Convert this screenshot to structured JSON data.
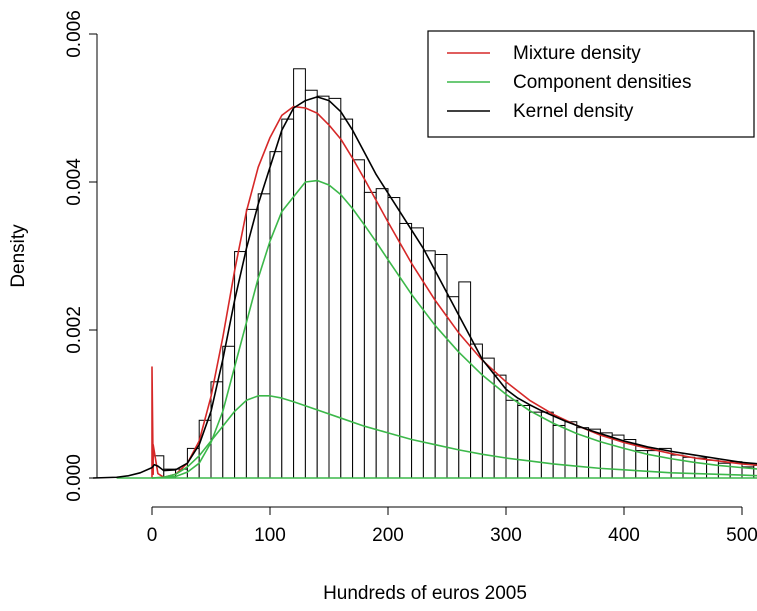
{
  "chart_data": {
    "type": "histogram",
    "title": "",
    "xlabel": "Hundreds of euros 2005",
    "ylabel": "Density",
    "xlim": [
      -30,
      515
    ],
    "ylim": [
      0,
      0.006
    ],
    "x_ticks": [
      0,
      100,
      200,
      300,
      400,
      500
    ],
    "x_tick_labels": [
      "0",
      "100",
      "200",
      "300",
      "400",
      "500"
    ],
    "y_ticks": [
      0,
      0.002,
      0.004,
      0.006
    ],
    "y_tick_labels": [
      "0.000",
      "0.002",
      "0.004",
      "0.006"
    ],
    "grid": false,
    "legend_position": "top-right",
    "histogram": {
      "bin_width": 10,
      "bin_starts": [
        0,
        10,
        20,
        30,
        40,
        50,
        60,
        70,
        80,
        90,
        100,
        110,
        120,
        130,
        140,
        150,
        160,
        170,
        180,
        190,
        200,
        210,
        220,
        230,
        240,
        250,
        260,
        270,
        280,
        290,
        300,
        310,
        320,
        330,
        340,
        350,
        360,
        370,
        380,
        390,
        400,
        410,
        420,
        430,
        440,
        450,
        460,
        470,
        480,
        490,
        500,
        510
      ],
      "densities": [
        0.0003,
        0.00012,
        0.00012,
        0.0004,
        0.00078,
        0.0013,
        0.00178,
        0.00306,
        0.00363,
        0.00384,
        0.00441,
        0.00485,
        0.00553,
        0.00524,
        0.00516,
        0.00513,
        0.00485,
        0.0043,
        0.00386,
        0.00391,
        0.00379,
        0.00344,
        0.00338,
        0.00307,
        0.00302,
        0.00245,
        0.00265,
        0.00181,
        0.00162,
        0.00139,
        0.00105,
        0.00098,
        0.00089,
        0.00089,
        0.00071,
        0.00076,
        0.00068,
        0.00066,
        0.00061,
        0.00058,
        0.00052,
        0.00037,
        0.00037,
        0.0004,
        0.00031,
        0.00028,
        0.00027,
        0.00024,
        0.0002,
        0.00022,
        0.00015,
        0.00017
      ]
    },
    "series": [
      {
        "name": "Mixture density",
        "color": "#d62828",
        "x": [
          0,
          0,
          1,
          1,
          5,
          10,
          20,
          30,
          40,
          50,
          60,
          70,
          80,
          90,
          100,
          110,
          120,
          130,
          140,
          150,
          160,
          170,
          180,
          190,
          200,
          220,
          240,
          260,
          280,
          300,
          320,
          340,
          360,
          380,
          400,
          420,
          440,
          460,
          480,
          500,
          515
        ],
        "y": [
          0,
          0.0015,
          5e-05,
          0.00045,
          6e-05,
          1e-05,
          5e-05,
          0.0002,
          0.0005,
          0.0011,
          0.0019,
          0.0028,
          0.0036,
          0.0042,
          0.0046,
          0.0049,
          0.00502,
          0.005,
          0.00493,
          0.00477,
          0.00458,
          0.00432,
          0.00404,
          0.00375,
          0.00346,
          0.0029,
          0.0024,
          0.00196,
          0.00159,
          0.0013,
          0.00105,
          0.00086,
          0.00071,
          0.00058,
          0.00048,
          0.0004,
          0.00033,
          0.00027,
          0.00023,
          0.00019,
          0.00017
        ]
      },
      {
        "name": "Component densities",
        "color": "#3cb84a",
        "x": [
          0,
          20,
          30,
          40,
          50,
          60,
          70,
          80,
          90,
          100,
          110,
          120,
          130,
          140,
          150,
          160,
          170,
          180,
          190,
          200,
          220,
          240,
          260,
          280,
          300,
          320,
          340,
          360,
          380,
          400,
          420,
          440,
          460,
          480,
          500,
          515
        ],
        "y": [
          0,
          2e-05,
          8e-05,
          0.0002,
          0.00048,
          0.0009,
          0.0015,
          0.0021,
          0.0027,
          0.0032,
          0.0036,
          0.0038,
          0.004,
          0.00402,
          0.00396,
          0.00383,
          0.00364,
          0.00342,
          0.00319,
          0.00295,
          0.00248,
          0.00206,
          0.0017,
          0.00139,
          0.00113,
          0.00091,
          0.00074,
          0.0006,
          0.00049,
          0.0004,
          0.00032,
          0.00026,
          0.00021,
          0.00017,
          0.00014,
          0.00012
        ]
      },
      {
        "name": "",
        "color": "#3cb84a",
        "x": [
          0,
          10,
          20,
          30,
          40,
          50,
          60,
          70,
          80,
          90,
          100,
          110,
          120,
          140,
          160,
          180,
          200,
          220,
          240,
          260,
          280,
          300,
          320,
          340,
          360,
          380,
          400,
          420,
          440,
          460,
          480,
          500,
          515
        ],
        "y": [
          0,
          1e-05,
          5e-05,
          0.00015,
          0.0003,
          0.0005,
          0.0007,
          0.0009,
          0.00105,
          0.00111,
          0.00111,
          0.00108,
          0.00103,
          0.00092,
          0.00081,
          0.0007,
          0.00061,
          0.00052,
          0.00045,
          0.00038,
          0.00032,
          0.00027,
          0.00023,
          0.00019,
          0.00016,
          0.00013,
          0.00011,
          9e-05,
          7e-05,
          6e-05,
          5e-05,
          4e-05,
          3e-05
        ]
      },
      {
        "name": "",
        "color": "#3cb84a",
        "x": [
          -30,
          515
        ],
        "y": [
          0,
          0
        ]
      },
      {
        "name": "Kernel density",
        "color": "#000000",
        "x": [
          -50,
          -30,
          -20,
          -10,
          0,
          2,
          5,
          10,
          20,
          30,
          40,
          50,
          60,
          70,
          80,
          90,
          100,
          110,
          120,
          130,
          140,
          150,
          160,
          170,
          180,
          190,
          200,
          210,
          220,
          230,
          240,
          250,
          260,
          270,
          280,
          290,
          300,
          310,
          320,
          330,
          340,
          350,
          360,
          370,
          380,
          390,
          400,
          420,
          440,
          460,
          480,
          500,
          515
        ],
        "y": [
          0,
          1e-05,
          3e-05,
          7e-05,
          0.00014,
          0.00018,
          0.00016,
          0.0001,
          0.00011,
          0.0002,
          0.00045,
          0.0009,
          0.0016,
          0.0024,
          0.0031,
          0.0037,
          0.0042,
          0.0047,
          0.005,
          0.0051,
          0.00515,
          0.0051,
          0.00495,
          0.0047,
          0.0044,
          0.0041,
          0.00385,
          0.0036,
          0.00335,
          0.0031,
          0.0028,
          0.0025,
          0.0022,
          0.0019,
          0.0016,
          0.0014,
          0.0012,
          0.00108,
          0.00099,
          0.00091,
          0.00084,
          0.00077,
          0.00071,
          0.00065,
          0.0006,
          0.00055,
          0.0005,
          0.00042,
          0.00036,
          0.00031,
          0.00026,
          0.00021,
          0.00019
        ]
      }
    ],
    "legend": [
      {
        "label": "Mixture density",
        "color": "#d62828"
      },
      {
        "label": "Component densities",
        "color": "#3cb84a"
      },
      {
        "label": "Kernel density",
        "color": "#000000"
      }
    ]
  }
}
